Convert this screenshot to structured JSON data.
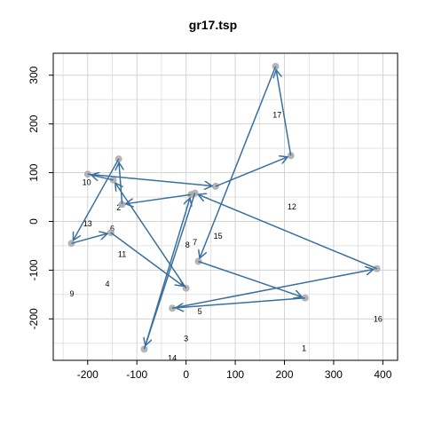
{
  "chart_data": {
    "type": "scatter",
    "title": "gr17.tsp",
    "xlabel": "",
    "ylabel": "",
    "xlim": [
      -270,
      430
    ],
    "ylim": [
      -285,
      345
    ],
    "x_ticks": [
      -200,
      -100,
      0,
      100,
      200,
      300,
      400
    ],
    "y_ticks": [
      -200,
      -100,
      0,
      100,
      200,
      300
    ],
    "grid": true,
    "colors": {
      "line": "#3a6f9e",
      "point": "#a8a8a8",
      "grid": "#d3d3d3",
      "frame": "#000000"
    },
    "cities": [
      {
        "label": "1",
        "x": 240,
        "y": -260
      },
      {
        "label": "2",
        "x": -137,
        "y": 28
      },
      {
        "label": "3",
        "x": 0,
        "y": -240
      },
      {
        "label": "4",
        "x": -160,
        "y": -128
      },
      {
        "label": "5",
        "x": 28,
        "y": -185
      },
      {
        "label": "6",
        "x": -150,
        "y": -15
      },
      {
        "label": "7",
        "x": 18,
        "y": -43
      },
      {
        "label": "8",
        "x": 3,
        "y": -48
      },
      {
        "label": "9",
        "x": -232,
        "y": -148
      },
      {
        "label": "10",
        "x": -202,
        "y": 80
      },
      {
        "label": "11",
        "x": -130,
        "y": -67
      },
      {
        "label": "12",
        "x": 215,
        "y": 30
      },
      {
        "label": "13",
        "x": -200,
        "y": -5
      },
      {
        "label": "14",
        "x": -28,
        "y": -280
      },
      {
        "label": "15",
        "x": 65,
        "y": -30
      },
      {
        "label": "16",
        "x": 390,
        "y": -200
      },
      {
        "label": "17",
        "x": 185,
        "y": 218
      }
    ],
    "tour_points": [
      {
        "x": -200,
        "y": 97
      },
      {
        "x": 60,
        "y": 72
      },
      {
        "x": 213,
        "y": 135
      },
      {
        "x": 182,
        "y": 318
      },
      {
        "x": 25,
        "y": -82
      },
      {
        "x": 242,
        "y": -157
      },
      {
        "x": -28,
        "y": -178
      },
      {
        "x": 388,
        "y": -97
      },
      {
        "x": 18,
        "y": 58
      },
      {
        "x": -85,
        "y": -262
      },
      {
        "x": 10,
        "y": 55
      },
      {
        "x": -130,
        "y": 35
      },
      {
        "x": -137,
        "y": 128
      },
      {
        "x": -233,
        "y": -45
      },
      {
        "x": -153,
        "y": -23
      },
      {
        "x": 0,
        "y": -137
      },
      {
        "x": -148,
        "y": 85
      }
    ]
  }
}
